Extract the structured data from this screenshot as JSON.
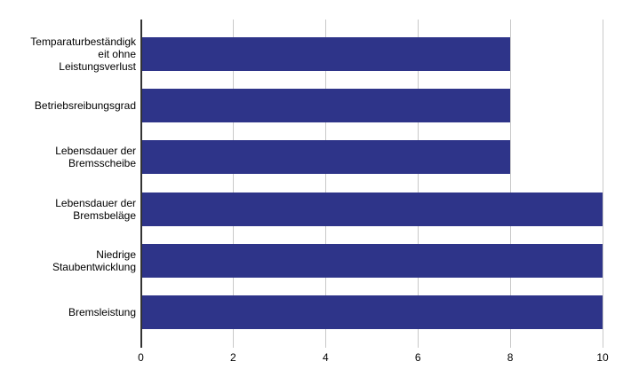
{
  "chart_data": {
    "type": "bar",
    "orientation": "horizontal",
    "title": "",
    "xlabel": "",
    "ylabel": "",
    "xlim": [
      0,
      10
    ],
    "xticks": [
      0,
      2,
      4,
      6,
      8,
      10
    ],
    "grid": true,
    "legend": false,
    "bar_color": "#2E3489",
    "gridline_color": "#C9C9C9",
    "axis_color": "#333333",
    "text_color": "#000000",
    "background_color": "#FFFFFF",
    "categories": [
      "Temparaturbeständigkeit ohne Leistungsverlust",
      "Betriebsreibungsgrad",
      "Lebensdauer der Bremsscheibe",
      "Lebensdauer der Bremsbeläge",
      "Niedrige Staubentwicklung",
      "Bremsleistung"
    ],
    "category_display_lines": [
      [
        "Temparaturbeständigk",
        "eit ohne",
        "Leistungsverlust"
      ],
      [
        "Betriebsreibungsgrad"
      ],
      [
        "Lebensdauer der",
        "Bremsscheibe"
      ],
      [
        "Lebensdauer der",
        "Bremsbeläge"
      ],
      [
        "Niedrige",
        "Staubentwicklung"
      ],
      [
        "Bremsleistung"
      ]
    ],
    "values": [
      8,
      8,
      8,
      10,
      10,
      10
    ]
  }
}
